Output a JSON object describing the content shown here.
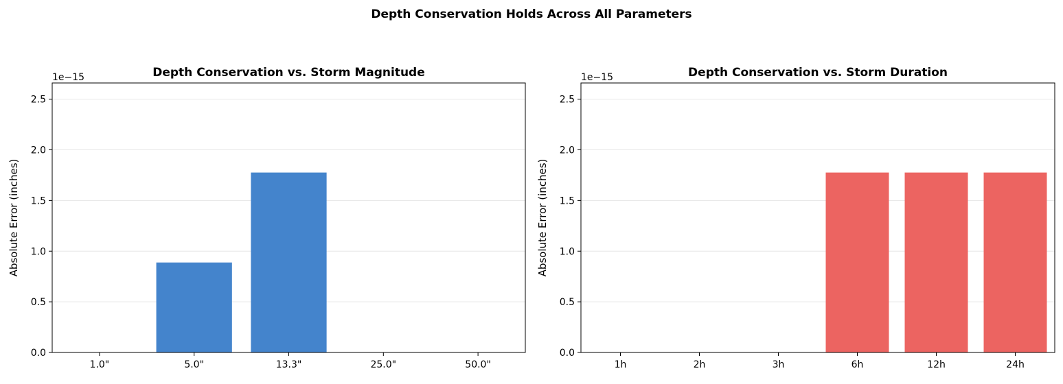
{
  "figure": {
    "suptitle": "Depth Conservation Holds Across All Parameters"
  },
  "chart_data": [
    {
      "type": "bar",
      "title": "Depth Conservation vs. Storm Magnitude",
      "xlabel": "",
      "ylabel": "Absolute Error (inches)",
      "y_offset_label": "1e−15",
      "y_scale_factor": 1e-15,
      "categories": [
        "1.0\"",
        "5.0\"",
        "13.3\"",
        "25.0\"",
        "50.0\""
      ],
      "values": [
        0,
        8.88e-16,
        1.776e-15,
        0,
        0
      ],
      "ylim": [
        0,
        2.66e-15
      ],
      "yticks": [
        0,
        0.5,
        1.0,
        1.5,
        2.0,
        2.5
      ],
      "ytick_labels": [
        "0.0",
        "0.5",
        "1.0",
        "1.5",
        "2.0",
        "2.5"
      ],
      "grid": "y",
      "color": "#4484cc"
    },
    {
      "type": "bar",
      "title": "Depth Conservation vs. Storm Duration",
      "xlabel": "",
      "ylabel": "Absolute Error (inches)",
      "y_offset_label": "1e−15",
      "y_scale_factor": 1e-15,
      "categories": [
        "1h",
        "2h",
        "3h",
        "6h",
        "12h",
        "24h"
      ],
      "values": [
        0,
        0,
        0,
        1.776e-15,
        1.776e-15,
        1.776e-15
      ],
      "ylim": [
        0,
        2.66e-15
      ],
      "yticks": [
        0,
        0.5,
        1.0,
        1.5,
        2.0,
        2.5
      ],
      "ytick_labels": [
        "0.0",
        "0.5",
        "1.0",
        "1.5",
        "2.0",
        "2.5"
      ],
      "grid": "y",
      "color": "#ec6461"
    }
  ]
}
